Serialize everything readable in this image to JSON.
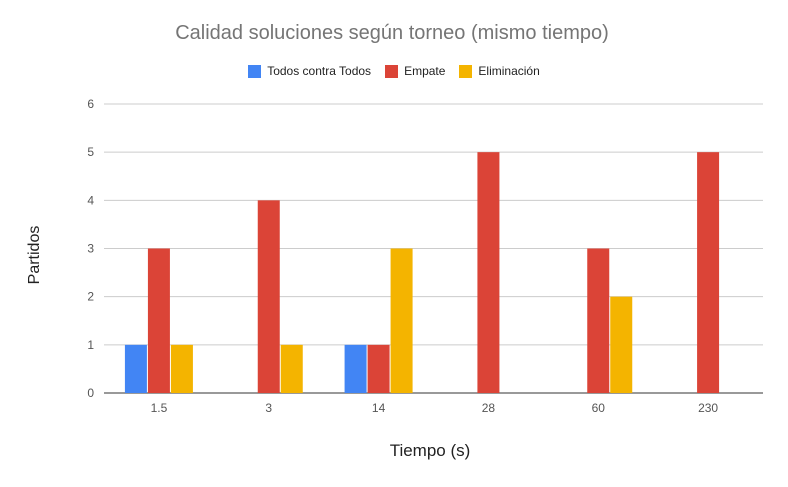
{
  "chart_data": {
    "type": "bar",
    "title": "Calidad soluciones según torneo (mismo tiempo)",
    "xlabel": "Tiempo (s)",
    "ylabel": "Partidos",
    "categories": [
      "1.5",
      "3",
      "14",
      "28",
      "60",
      "230"
    ],
    "series": [
      {
        "name": "Todos contra Todos",
        "color": "#4285f4",
        "values": [
          1,
          0,
          1,
          0,
          0,
          0
        ]
      },
      {
        "name": "Empate",
        "color": "#db4437",
        "values": [
          3,
          4,
          1,
          5,
          3,
          5
        ]
      },
      {
        "name": "Eliminación",
        "color": "#f4b400",
        "values": [
          1,
          1,
          3,
          0,
          2,
          0
        ]
      }
    ],
    "ylim": [
      0,
      6
    ],
    "yticks": [
      "0",
      "1",
      "2",
      "3",
      "4",
      "5",
      "6"
    ],
    "grid": true,
    "legend": "top-center"
  }
}
